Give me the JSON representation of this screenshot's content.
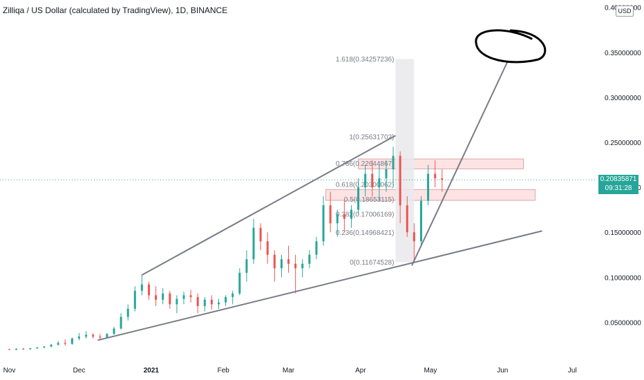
{
  "header": {
    "title": "Zilliqa / US Dollar (calculated by TradingView), 1D, BINANCE",
    "currency": "USD"
  },
  "price_badge": {
    "price": "0.20835871",
    "countdown": "09:31:28"
  },
  "colors": {
    "up": "#26a69a",
    "down": "#ef5350",
    "trendline": "#787b86",
    "zone_fill": "#fde3e4",
    "zone_border": "#d9a6a8",
    "fib_shade": "#e9e9ec",
    "price_line": "#26a69a"
  },
  "chart_data": {
    "type": "candlestick",
    "title": "Zilliqa / US Dollar (calculated by TradingView), 1D, BINANCE",
    "y_axis": {
      "ticks": [
        "0.05000000",
        "0.10000000",
        "0.15000000",
        "0.20000000",
        "0.25000000",
        "0.30000000",
        "0.35000000",
        "0.40000000"
      ],
      "tick_values": [
        0.05,
        0.1,
        0.15,
        0.2,
        0.25,
        0.3,
        0.35,
        0.4
      ],
      "range": [
        0.0,
        0.4
      ]
    },
    "x_axis": {
      "labels": [
        {
          "text": "Nov",
          "date": "2020-11-01"
        },
        {
          "text": "Dec",
          "date": "2020-12-01"
        },
        {
          "text": "2021",
          "date": "2021-01-01",
          "bold": true
        },
        {
          "text": "Feb",
          "date": "2021-02-01"
        },
        {
          "text": "Mar",
          "date": "2021-03-01"
        },
        {
          "text": "Apr",
          "date": "2021-04-01"
        },
        {
          "text": "May",
          "date": "2021-05-01"
        },
        {
          "text": "Jun",
          "date": "2021-06-01"
        },
        {
          "text": "Jul",
          "date": "2021-07-01"
        }
      ],
      "range": [
        "2020-10-28",
        "2021-07-11"
      ]
    },
    "last_price": 0.20835871,
    "fib_levels": [
      {
        "label": "0(0.11674528)",
        "value": 0.11674528
      },
      {
        "label": "0.236(0.14968421)",
        "value": 0.14968421
      },
      {
        "label": "0.382(0.17006169)",
        "value": 0.17006169
      },
      {
        "label": "0.5(0.18653115)",
        "value": 0.18653115
      },
      {
        "label": "0.618(0.20300062)",
        "value": 0.20300062
      },
      {
        "label": "0.786(0.22644867)",
        "value": 0.22644867
      },
      {
        "label": "1(0.25631702)",
        "value": 0.25631702
      },
      {
        "label": "1.618(0.34257236)",
        "value": 0.34257236
      }
    ],
    "fib_range": {
      "start": "2021-04-16",
      "end": "2021-04-24"
    },
    "zones": [
      {
        "start": "2021-03-31",
        "end": "2021-06-10",
        "low": 0.2205,
        "high": 0.2315
      },
      {
        "start": "2021-03-17",
        "end": "2021-06-15",
        "low": 0.1855,
        "high": 0.1975
      }
    ],
    "trendlines": [
      {
        "x1": "2020-12-28",
        "y1": 0.1025,
        "x2": "2021-04-16",
        "y2": 0.2575
      },
      {
        "x1": "2020-12-09",
        "y1": 0.03,
        "x2": "2021-06-18",
        "y2": 0.1515
      },
      {
        "x1": "2021-04-23",
        "y1": 0.113,
        "x2": "2021-06-03",
        "y2": 0.339
      },
      {
        "x1": "2021-04-23",
        "y1": 0.113,
        "x2": "2021-06-03",
        "y2": 0.339,
        "hidden": true
      }
    ],
    "ohlc": [
      [
        "2020-11-01",
        0.02,
        0.0205,
        0.019,
        0.0195
      ],
      [
        "2020-11-04",
        0.0195,
        0.021,
        0.019,
        0.0205
      ],
      [
        "2020-11-07",
        0.0205,
        0.0215,
        0.0195,
        0.02
      ],
      [
        "2020-11-10",
        0.02,
        0.0215,
        0.0195,
        0.021
      ],
      [
        "2020-11-13",
        0.021,
        0.0225,
        0.0205,
        0.022
      ],
      [
        "2020-11-16",
        0.022,
        0.0235,
        0.021,
        0.023
      ],
      [
        "2020-11-19",
        0.023,
        0.026,
        0.022,
        0.025
      ],
      [
        "2020-11-22",
        0.025,
        0.029,
        0.024,
        0.027
      ],
      [
        "2020-11-25",
        0.027,
        0.031,
        0.024,
        0.026
      ],
      [
        "2020-11-28",
        0.026,
        0.033,
        0.025,
        0.032
      ],
      [
        "2020-12-01",
        0.032,
        0.038,
        0.03,
        0.034
      ],
      [
        "2020-12-04",
        0.034,
        0.04,
        0.032,
        0.036
      ],
      [
        "2020-12-07",
        0.036,
        0.038,
        0.032,
        0.034
      ],
      [
        "2020-12-10",
        0.034,
        0.037,
        0.03,
        0.033
      ],
      [
        "2020-12-13",
        0.033,
        0.038,
        0.032,
        0.037
      ],
      [
        "2020-12-16",
        0.037,
        0.045,
        0.036,
        0.043
      ],
      [
        "2020-12-19",
        0.043,
        0.06,
        0.042,
        0.056
      ],
      [
        "2020-12-22",
        0.056,
        0.07,
        0.052,
        0.065
      ],
      [
        "2020-12-25",
        0.065,
        0.09,
        0.062,
        0.085
      ],
      [
        "2020-12-28",
        0.085,
        0.103,
        0.08,
        0.092
      ],
      [
        "2020-12-31",
        0.092,
        0.095,
        0.075,
        0.08
      ],
      [
        "2021-01-03",
        0.08,
        0.09,
        0.068,
        0.075
      ],
      [
        "2021-01-06",
        0.075,
        0.088,
        0.07,
        0.082
      ],
      [
        "2021-01-09",
        0.082,
        0.085,
        0.065,
        0.07
      ],
      [
        "2021-01-12",
        0.07,
        0.08,
        0.06,
        0.076
      ],
      [
        "2021-01-15",
        0.076,
        0.084,
        0.07,
        0.08
      ],
      [
        "2021-01-18",
        0.08,
        0.086,
        0.072,
        0.078
      ],
      [
        "2021-01-21",
        0.078,
        0.082,
        0.06,
        0.068
      ],
      [
        "2021-01-24",
        0.068,
        0.078,
        0.062,
        0.075
      ],
      [
        "2021-01-27",
        0.075,
        0.08,
        0.064,
        0.07
      ],
      [
        "2021-01-30",
        0.07,
        0.076,
        0.065,
        0.072
      ],
      [
        "2021-02-02",
        0.072,
        0.08,
        0.068,
        0.078
      ],
      [
        "2021-02-05",
        0.078,
        0.085,
        0.07,
        0.082
      ],
      [
        "2021-02-08",
        0.082,
        0.11,
        0.08,
        0.105
      ],
      [
        "2021-02-11",
        0.105,
        0.13,
        0.095,
        0.12
      ],
      [
        "2021-02-14",
        0.12,
        0.165,
        0.115,
        0.155
      ],
      [
        "2021-02-17",
        0.155,
        0.16,
        0.13,
        0.14
      ],
      [
        "2021-02-20",
        0.14,
        0.15,
        0.115,
        0.125
      ],
      [
        "2021-02-23",
        0.125,
        0.13,
        0.095,
        0.11
      ],
      [
        "2021-02-26",
        0.11,
        0.125,
        0.1,
        0.12
      ],
      [
        "2021-03-01",
        0.12,
        0.135,
        0.105,
        0.115
      ],
      [
        "2021-03-04",
        0.115,
        0.125,
        0.082,
        0.11
      ],
      [
        "2021-03-07",
        0.11,
        0.12,
        0.1,
        0.115
      ],
      [
        "2021-03-10",
        0.115,
        0.13,
        0.11,
        0.125
      ],
      [
        "2021-03-13",
        0.125,
        0.145,
        0.12,
        0.14
      ],
      [
        "2021-03-16",
        0.14,
        0.19,
        0.135,
        0.18
      ],
      [
        "2021-03-19",
        0.18,
        0.195,
        0.15,
        0.16
      ],
      [
        "2021-03-22",
        0.16,
        0.175,
        0.145,
        0.17
      ],
      [
        "2021-03-25",
        0.17,
        0.185,
        0.15,
        0.165
      ],
      [
        "2021-03-28",
        0.165,
        0.18,
        0.155,
        0.175
      ],
      [
        "2021-03-31",
        0.175,
        0.21,
        0.17,
        0.2
      ],
      [
        "2021-04-03",
        0.2,
        0.225,
        0.19,
        0.215
      ],
      [
        "2021-04-06",
        0.215,
        0.23,
        0.19,
        0.2
      ],
      [
        "2021-04-09",
        0.2,
        0.225,
        0.185,
        0.21
      ],
      [
        "2021-04-12",
        0.21,
        0.23,
        0.195,
        0.22
      ],
      [
        "2021-04-15",
        0.22,
        0.245,
        0.2,
        0.235
      ],
      [
        "2021-04-18",
        0.235,
        0.24,
        0.16,
        0.18
      ],
      [
        "2021-04-21",
        0.18,
        0.19,
        0.145,
        0.15
      ],
      [
        "2021-04-24",
        0.15,
        0.16,
        0.117,
        0.14
      ],
      [
        "2021-04-27",
        0.14,
        0.19,
        0.135,
        0.185
      ],
      [
        "2021-04-30",
        0.185,
        0.225,
        0.18,
        0.215
      ],
      [
        "2021-05-03",
        0.215,
        0.23,
        0.2,
        0.21
      ],
      [
        "2021-05-06",
        0.21,
        0.22,
        0.195,
        0.2084
      ]
    ]
  }
}
